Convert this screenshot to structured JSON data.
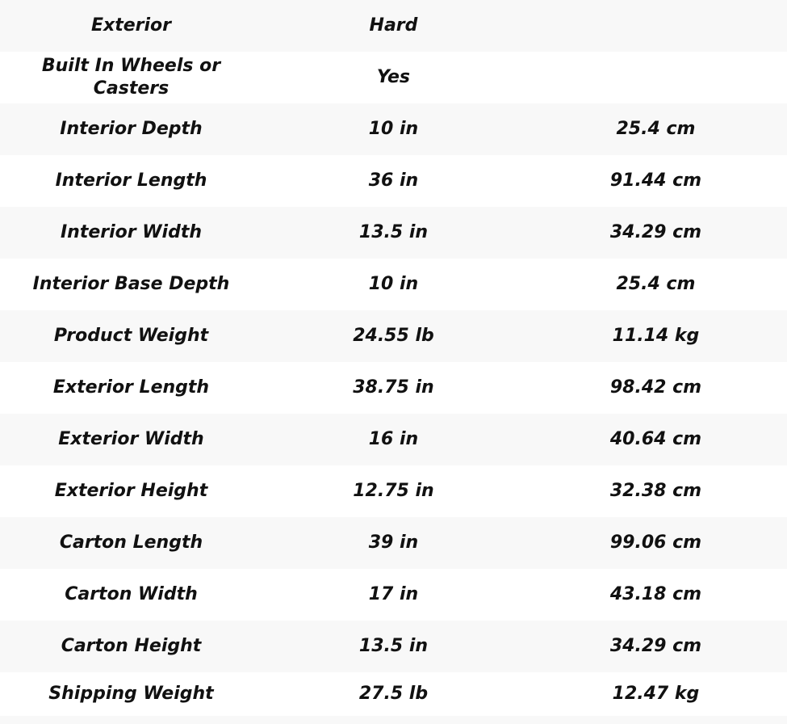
{
  "table": {
    "name": "product-specifications",
    "columns": [
      "attribute",
      "value_primary",
      "value_metric"
    ],
    "rows": [
      {
        "label": "Exterior",
        "value1": "Hard",
        "value2": ""
      },
      {
        "label": "Built In Wheels or Casters",
        "value1": "Yes",
        "value2": ""
      },
      {
        "label": "Interior Depth",
        "value1": "10 in",
        "value2": "25.4 cm"
      },
      {
        "label": "Interior Length",
        "value1": "36 in",
        "value2": "91.44 cm"
      },
      {
        "label": "Interior Width",
        "value1": "13.5 in",
        "value2": "34.29 cm"
      },
      {
        "label": "Interior Base Depth",
        "value1": "10 in",
        "value2": "25.4 cm"
      },
      {
        "label": "Product Weight",
        "value1": "24.55 lb",
        "value2": "11.14 kg"
      },
      {
        "label": "Exterior Length",
        "value1": "38.75 in",
        "value2": "98.42 cm"
      },
      {
        "label": "Exterior Width",
        "value1": "16 in",
        "value2": "40.64 cm"
      },
      {
        "label": "Exterior Height",
        "value1": "12.75 in",
        "value2": "32.38 cm"
      },
      {
        "label": "Carton Length",
        "value1": "39 in",
        "value2": "99.06 cm"
      },
      {
        "label": "Carton Width",
        "value1": "17 in",
        "value2": "43.18 cm"
      },
      {
        "label": "Carton Height",
        "value1": "13.5 in",
        "value2": "34.29 cm"
      },
      {
        "label": "Shipping Weight",
        "value1": "27.5 lb",
        "value2": "12.47 kg"
      }
    ],
    "colors": {
      "stripe_background": "#f8f8f8",
      "row_background": "#ffffff",
      "text": "#111111"
    }
  }
}
